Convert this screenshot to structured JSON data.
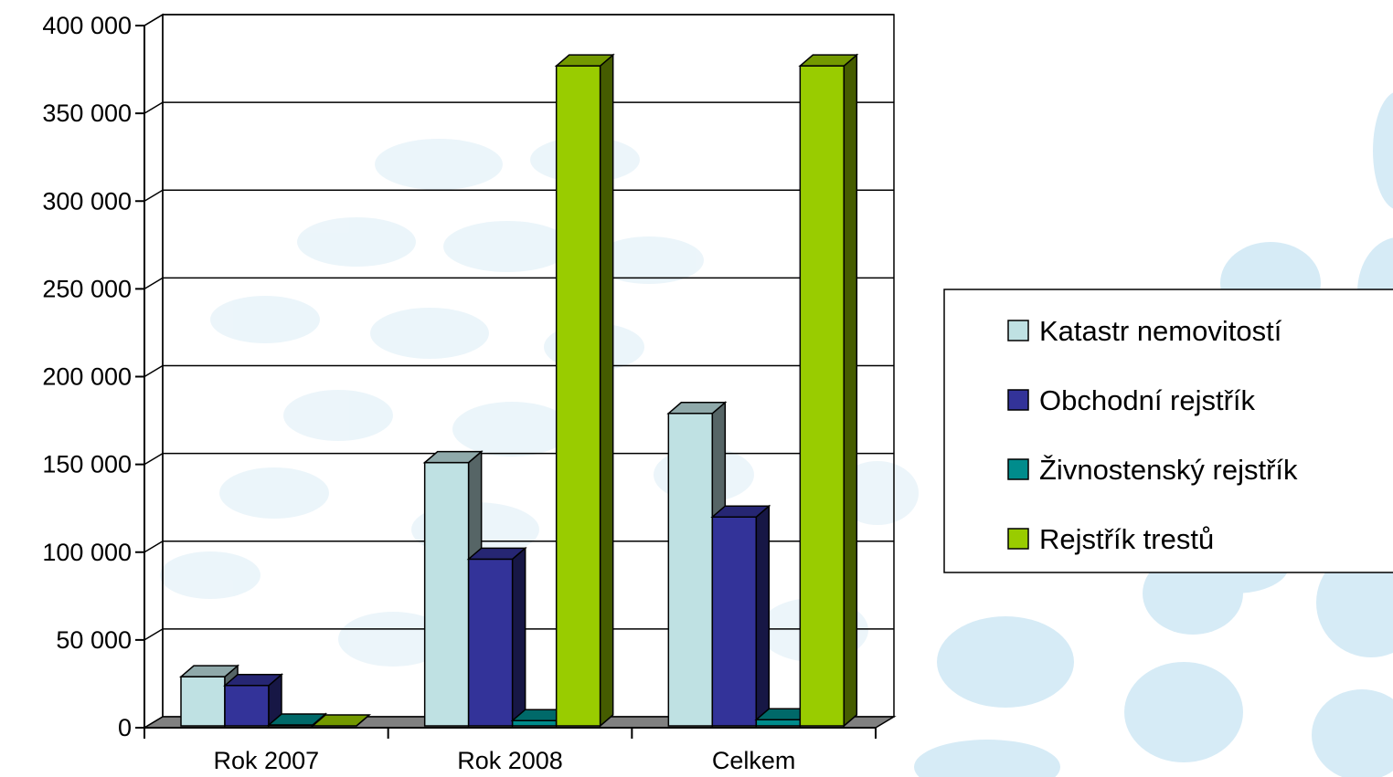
{
  "chart_data": {
    "type": "bar",
    "categories": [
      "Rok 2007",
      "Rok 2008",
      "Celkem"
    ],
    "series": [
      {
        "name": "Katastr nemovitostí",
        "values": [
          28000,
          150000,
          178000
        ],
        "color": "#bfe1e3"
      },
      {
        "name": "Obchodní rejstřík",
        "values": [
          23000,
          95000,
          119000
        ],
        "color": "#333399"
      },
      {
        "name": "Živnostenský rejstřík",
        "values": [
          500,
          3000,
          3500
        ],
        "color": "#008c8c"
      },
      {
        "name": "Rejstřík trestů",
        "values": [
          0,
          376000,
          376000
        ],
        "color": "#99cc00"
      }
    ],
    "y_ticks": [
      "0",
      "50 000",
      "100 000",
      "150 000",
      "200 000",
      "250 000",
      "300 000",
      "350 000",
      "400 000"
    ],
    "ylim": [
      0,
      400000
    ],
    "grid": true,
    "three_d": true,
    "legend_position": "right"
  }
}
